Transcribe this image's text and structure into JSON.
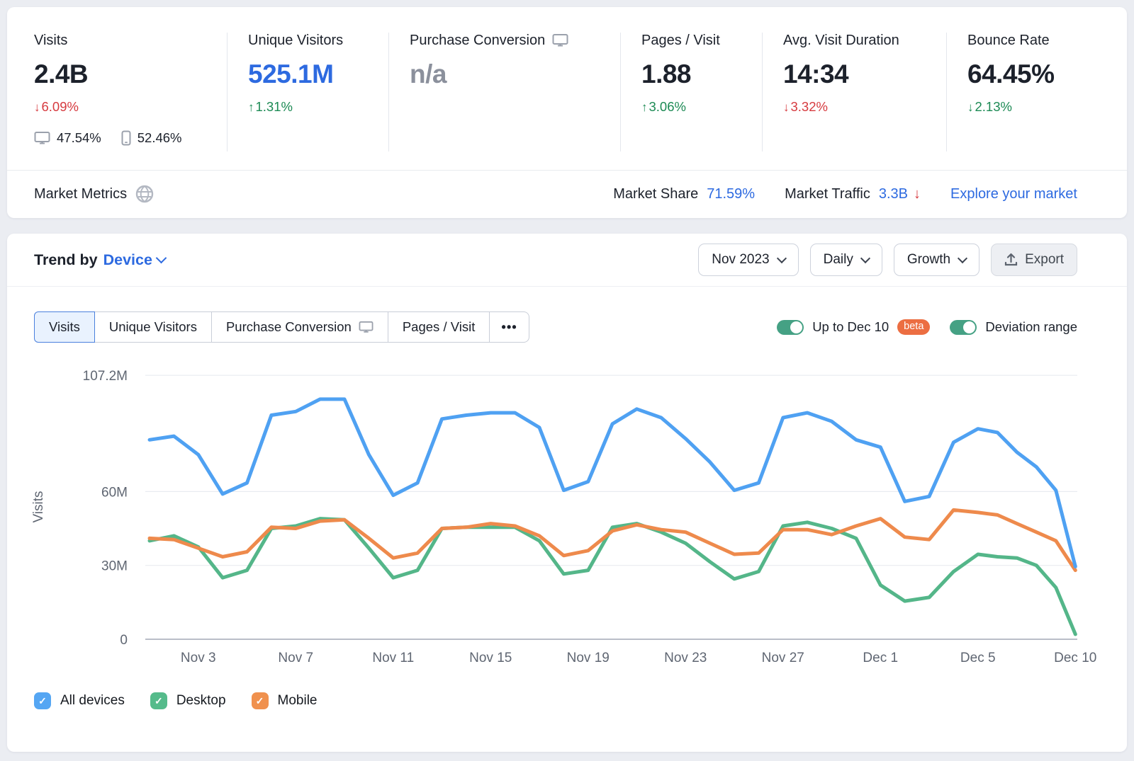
{
  "colors": {
    "link_blue": "#2d6ae0",
    "negative_red": "#d63a3f",
    "positive_green": "#1c8a54",
    "toggle_green": "#45a184",
    "beta_badge": "#ec6e42",
    "chart_blue": "#4fa1f2",
    "chart_green": "#54b689",
    "chart_orange": "#ee8a4c"
  },
  "top_metrics": {
    "items": [
      {
        "label": "Visits",
        "value": "2.4B",
        "delta_arrow": "↓",
        "delta": "6.09%",
        "delta_color": "red",
        "desktop_share": "47.54%",
        "mobile_share": "52.46%"
      },
      {
        "label": "Unique Visitors",
        "value": "525.1M",
        "delta_arrow": "↑",
        "delta": "1.31%",
        "delta_color": "green"
      },
      {
        "label": "Purchase Conversion",
        "value": "n/a"
      },
      {
        "label": "Pages / Visit",
        "value": "1.88",
        "delta_arrow": "↑",
        "delta": "3.06%",
        "delta_color": "green"
      },
      {
        "label": "Avg. Visit Duration",
        "value": "14:34",
        "delta_arrow": "↓",
        "delta": "3.32%",
        "delta_color": "red"
      },
      {
        "label": "Bounce Rate",
        "value": "64.45%",
        "delta_arrow": "↓",
        "delta": "2.13%",
        "delta_color": "green"
      }
    ]
  },
  "market_metrics": {
    "title": "Market Metrics",
    "share_label": "Market Share",
    "share_value": "71.59%",
    "traffic_label": "Market Traffic",
    "traffic_value": "3.3B",
    "traffic_arrow": "↓",
    "link": "Explore your market"
  },
  "trend_header": {
    "title_prefix": "Trend by",
    "title_selector": "Device",
    "period": "Nov 2023",
    "granularity": "Daily",
    "mode": "Growth",
    "export_label": "Export"
  },
  "tabs": [
    {
      "label": "Visits",
      "active": true
    },
    {
      "label": "Unique Visitors"
    },
    {
      "label": "Purchase Conversion",
      "icon": "desktop-icon"
    },
    {
      "label": "Pages / Visit"
    },
    {
      "label": "•••",
      "more": true
    }
  ],
  "toggles": [
    {
      "label": "Up to Dec 10",
      "badge": "beta",
      "on": true
    },
    {
      "label": "Deviation range",
      "on": true
    }
  ],
  "chart_data": {
    "type": "line",
    "title": "Trend by Device — Visits, Daily, Growth",
    "ylabel": "Visits",
    "unit": "millions",
    "ylim": [
      0,
      107.2
    ],
    "grid": "horizontal",
    "legend_position": "bottom",
    "y_ticks": [
      {
        "value": 107.2,
        "label": "107.2M"
      },
      {
        "value": 60,
        "label": "60M"
      },
      {
        "value": 30,
        "label": "30M"
      },
      {
        "value": 0,
        "label": "0"
      }
    ],
    "x": [
      "Nov 1",
      "Nov 2",
      "Nov 3",
      "Nov 4",
      "Nov 5",
      "Nov 6",
      "Nov 7",
      "Nov 8",
      "Nov 9",
      "Nov 10",
      "Nov 11",
      "Nov 12",
      "Nov 13",
      "Nov 14",
      "Nov 15",
      "Nov 16",
      "Nov 17",
      "Nov 18",
      "Nov 19",
      "Nov 20",
      "Nov 21",
      "Nov 22",
      "Nov 23",
      "Nov 24",
      "Nov 25",
      "Nov 26",
      "Nov 27",
      "Nov 28",
      "Nov 29",
      "Nov 30",
      "Dec 1",
      "Dec 2",
      "Dec 3",
      "Dec 4",
      "Dec 5",
      "Dec 6",
      "Dec 7",
      "Dec 8",
      "Dec 9",
      "Dec 10"
    ],
    "x_ticks": [
      {
        "index": 2,
        "label": "Nov 3"
      },
      {
        "index": 6,
        "label": "Nov 7"
      },
      {
        "index": 10,
        "label": "Nov 11"
      },
      {
        "index": 14,
        "label": "Nov 15"
      },
      {
        "index": 18,
        "label": "Nov 19"
      },
      {
        "index": 22,
        "label": "Nov 23"
      },
      {
        "index": 26,
        "label": "Nov 27"
      },
      {
        "index": 30,
        "label": "Dec 1"
      },
      {
        "index": 34,
        "label": "Dec 5"
      },
      {
        "index": 39,
        "label": "Dec 10"
      }
    ],
    "series": [
      {
        "name": "All devices",
        "color": "#4fa1f2",
        "values": [
          81,
          82.5,
          75,
          59,
          63.5,
          91,
          92.5,
          97.5,
          97.5,
          75,
          58.5,
          63.5,
          89.5,
          91,
          92,
          92,
          86,
          60.5,
          64,
          87.5,
          93.5,
          90,
          81.5,
          72,
          60.5,
          63.5,
          90,
          92,
          88.5,
          81,
          78,
          56,
          58,
          80,
          85.5,
          84,
          76,
          70,
          60.5,
          29.5
        ]
      },
      {
        "name": "Desktop",
        "color": "#54b689",
        "values": [
          40,
          42,
          37.5,
          25,
          28,
          45,
          46,
          49,
          48.5,
          37,
          25,
          28,
          45,
          45.5,
          45.5,
          45.5,
          40,
          26.5,
          28,
          45.5,
          47,
          43.5,
          39,
          31.5,
          24.5,
          27.5,
          46,
          47.5,
          45,
          41,
          22,
          15.5,
          17,
          27.5,
          34.5,
          33.5,
          33,
          30,
          21,
          2
        ]
      },
      {
        "name": "Mobile",
        "color": "#ee8a4c",
        "values": [
          41,
          40.5,
          37,
          33.5,
          35.5,
          45.5,
          45,
          48,
          48.5,
          41,
          33,
          35,
          45,
          45.5,
          47,
          46,
          42,
          34,
          36,
          44,
          46.5,
          44.5,
          43.5,
          39,
          34.5,
          35,
          44.5,
          44.5,
          42.5,
          46,
          49,
          41.5,
          40.5,
          52.5,
          51.5,
          50.5,
          47,
          43.5,
          40,
          28
        ]
      }
    ]
  },
  "legend": [
    {
      "label": "All devices",
      "color": "#55a6f3",
      "checked": true
    },
    {
      "label": "Desktop",
      "color": "#55bb8b",
      "checked": true
    },
    {
      "label": "Mobile",
      "color": "#f0914e",
      "checked": true
    }
  ]
}
